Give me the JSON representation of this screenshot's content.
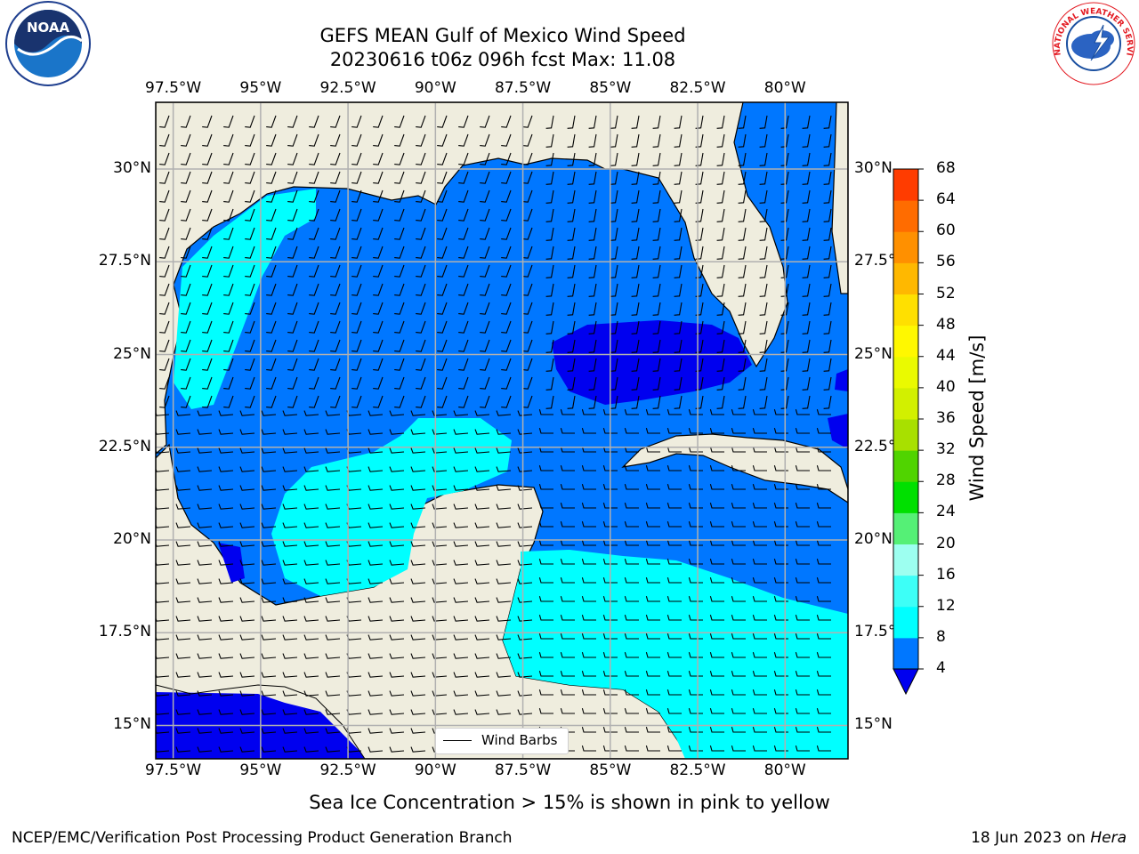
{
  "title": {
    "line1": "GEFS MEAN Gulf of Mexico Wind Speed",
    "line2": "20230616 t06z 096h fcst   Max: 11.08"
  },
  "map": {
    "lon_ticks": [
      "97.5°W",
      "95°W",
      "92.5°W",
      "90°W",
      "87.5°W",
      "85°W",
      "82.5°W",
      "80°W"
    ],
    "lat_ticks": [
      "30°N",
      "27.5°N",
      "25°N",
      "22.5°N",
      "20°N",
      "17.5°N",
      "15°N"
    ],
    "lon_range": [
      -98,
      -78.2
    ],
    "lat_range": [
      14.1,
      31.8
    ],
    "land_color": "#efedde",
    "grid": true
  },
  "legend": {
    "label": "Wind Barbs"
  },
  "colorbar": {
    "title": "Wind Speed [m/s]",
    "levels": [
      "4",
      "8",
      "12",
      "16",
      "20",
      "24",
      "28",
      "32",
      "36",
      "40",
      "44",
      "48",
      "52",
      "56",
      "60",
      "64",
      "68"
    ],
    "colors": [
      "#0077ff",
      "#00ffff",
      "#3dfff7",
      "#9dfff0",
      "#55f076",
      "#00e000",
      "#50d400",
      "#a8e000",
      "#d2f000",
      "#eafa00",
      "#fff800",
      "#ffe000",
      "#ffb800",
      "#ff9000",
      "#ff6c00",
      "#ff3c00",
      "#ff0000"
    ],
    "under_color": "#0000ef"
  },
  "palette": {
    "wind_lt4": "#0000ef",
    "wind_4_8": "#0077ff",
    "wind_8_12": "#00ffff",
    "wind_12_16": "#3dfff7"
  },
  "logos": {
    "left": "noaa-logo",
    "right": "nws-logo"
  },
  "footer": {
    "note": "Sea Ice Concentration > 15% is shown in pink to yellow",
    "credit": "NCEP/EMC/Verification Post Processing Product Generation Branch",
    "date": "18 Jun 2023 on ",
    "machine": "Hera"
  }
}
